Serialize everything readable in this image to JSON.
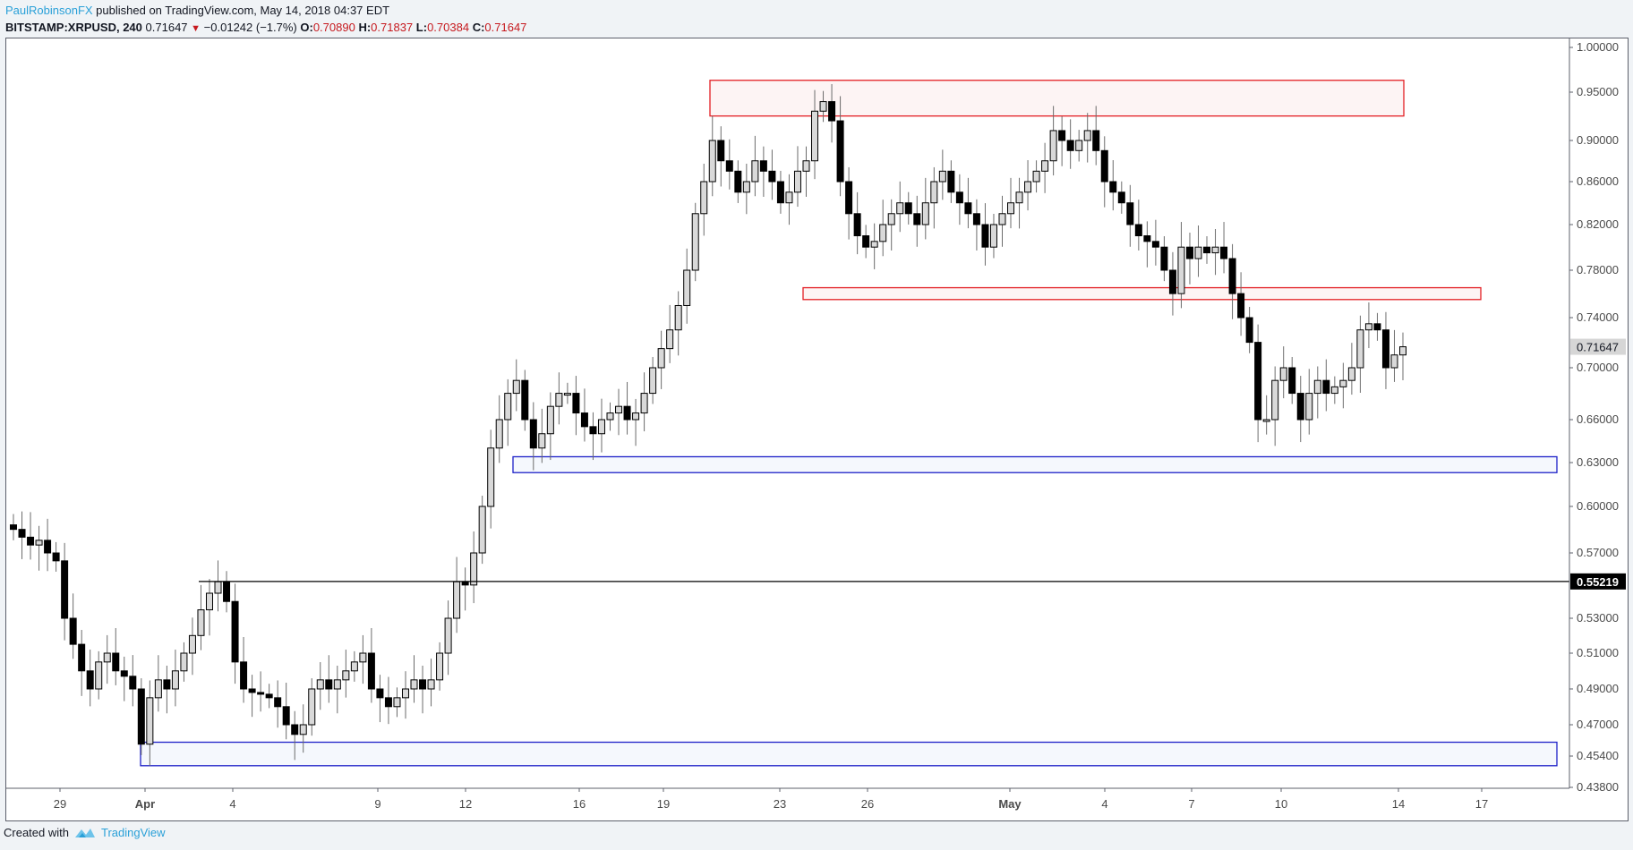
{
  "header": {
    "author": "PaulRobinsonFX",
    "published_text": " published on TradingView.com, May 14, 2018 04:37 EDT",
    "symbol": "BITSTAMP:XRPUSD, 240",
    "last_price": "0.71647",
    "direction_icon": "down-triangle",
    "change": "−0.01242 (−1.7%)",
    "open_label": "O:",
    "open": "0.70890",
    "high_label": "H:",
    "high": "0.71837",
    "low_label": "L:",
    "low": "0.70384",
    "close_label": "C:",
    "close": "0.71647"
  },
  "footer": {
    "created_with": "Created with",
    "brand": "TradingView",
    "logo_icon": "tradingview-logo"
  },
  "colors": {
    "up_fill": "#d9d9d9",
    "down_fill": "#000000",
    "wick": "#6b6b6b",
    "resistance_zone": "#e31e24",
    "support_zone": "#1c1fc8",
    "hline": "#000000",
    "last_price_bg": "#d6d6d6",
    "hline_label_bg": "#000000"
  },
  "chart_data": {
    "type": "candlestick",
    "title": "BITSTAMP:XRPUSD, 240",
    "xlabel": "",
    "ylabel": "",
    "ylim": [
      0.425,
      1.005
    ],
    "y_scale": "log",
    "y_ticks": [
      "1.00000",
      "0.95000",
      "0.90000",
      "0.86000",
      "0.82000",
      "0.78000",
      "0.74000",
      "0.70000",
      "0.66000",
      "0.63000",
      "0.60000",
      "0.57000",
      "0.53000",
      "0.51000",
      "0.49000",
      "0.47000",
      "0.45400",
      "0.43800"
    ],
    "x_ticks": [
      {
        "label": "29",
        "bold": false
      },
      {
        "label": "Apr",
        "bold": true
      },
      {
        "label": "4",
        "bold": false
      },
      {
        "label": "9",
        "bold": false
      },
      {
        "label": "12",
        "bold": false
      },
      {
        "label": "16",
        "bold": false
      },
      {
        "label": "19",
        "bold": false
      },
      {
        "label": "23",
        "bold": false
      },
      {
        "label": "26",
        "bold": false
      },
      {
        "label": "May",
        "bold": true
      },
      {
        "label": "4",
        "bold": false
      },
      {
        "label": "7",
        "bold": false
      },
      {
        "label": "10",
        "bold": false
      },
      {
        "label": "14",
        "bold": false
      },
      {
        "label": "17",
        "bold": false
      }
    ],
    "price_labels": [
      {
        "value": "0.71647",
        "type": "last_price"
      },
      {
        "value": "0.55219",
        "type": "horizontal_line"
      }
    ],
    "horizontal_line": {
      "price": 0.55219,
      "start_date": "Apr 3"
    },
    "zones": [
      {
        "name": "resistance-zone-top",
        "color": "red",
        "price_low": 0.925,
        "price_high": 0.963,
        "from": "Apr 20",
        "to": "May 18"
      },
      {
        "name": "resistance-zone-mid",
        "color": "red",
        "price_low": 0.755,
        "price_high": 0.765,
        "from": "Apr 23",
        "to": "May 19"
      },
      {
        "name": "support-zone-mid",
        "color": "blue",
        "price_low": 0.623,
        "price_high": 0.634,
        "from": "Apr 13",
        "to": "May 20"
      },
      {
        "name": "support-zone-low",
        "color": "blue",
        "price_low": 0.449,
        "price_high": 0.461,
        "from": "Mar 31",
        "to": "May 20"
      }
    ],
    "ohlc_path_close": [
      0.585,
      0.58,
      0.575,
      0.578,
      0.57,
      0.565,
      0.53,
      0.515,
      0.5,
      0.49,
      0.505,
      0.51,
      0.5,
      0.497,
      0.49,
      0.46,
      0.485,
      0.495,
      0.49,
      0.5,
      0.51,
      0.52,
      0.535,
      0.545,
      0.552,
      0.54,
      0.505,
      0.49,
      0.488,
      0.487,
      0.485,
      0.48,
      0.47,
      0.465,
      0.47,
      0.49,
      0.495,
      0.49,
      0.495,
      0.5,
      0.505,
      0.51,
      0.49,
      0.485,
      0.48,
      0.485,
      0.49,
      0.495,
      0.49,
      0.495,
      0.51,
      0.53,
      0.552,
      0.55,
      0.57,
      0.6,
      0.64,
      0.66,
      0.68,
      0.69,
      0.66,
      0.64,
      0.65,
      0.67,
      0.68,
      0.68,
      0.665,
      0.655,
      0.65,
      0.66,
      0.665,
      0.67,
      0.66,
      0.665,
      0.68,
      0.7,
      0.715,
      0.73,
      0.75,
      0.78,
      0.83,
      0.86,
      0.9,
      0.88,
      0.87,
      0.85,
      0.86,
      0.88,
      0.87,
      0.86,
      0.84,
      0.85,
      0.87,
      0.88,
      0.93,
      0.94,
      0.92,
      0.86,
      0.83,
      0.81,
      0.8,
      0.805,
      0.82,
      0.83,
      0.84,
      0.83,
      0.82,
      0.84,
      0.86,
      0.87,
      0.85,
      0.84,
      0.83,
      0.82,
      0.8,
      0.82,
      0.83,
      0.84,
      0.85,
      0.86,
      0.87,
      0.88,
      0.91,
      0.9,
      0.89,
      0.9,
      0.91,
      0.89,
      0.86,
      0.85,
      0.84,
      0.82,
      0.81,
      0.805,
      0.8,
      0.78,
      0.76,
      0.8,
      0.79,
      0.8,
      0.795,
      0.8,
      0.79,
      0.76,
      0.74,
      0.72,
      0.66,
      0.66,
      0.69,
      0.7,
      0.68,
      0.66,
      0.68,
      0.69,
      0.68,
      0.685,
      0.69,
      0.7,
      0.73,
      0.735,
      0.73,
      0.7,
      0.71,
      0.71647
    ]
  }
}
